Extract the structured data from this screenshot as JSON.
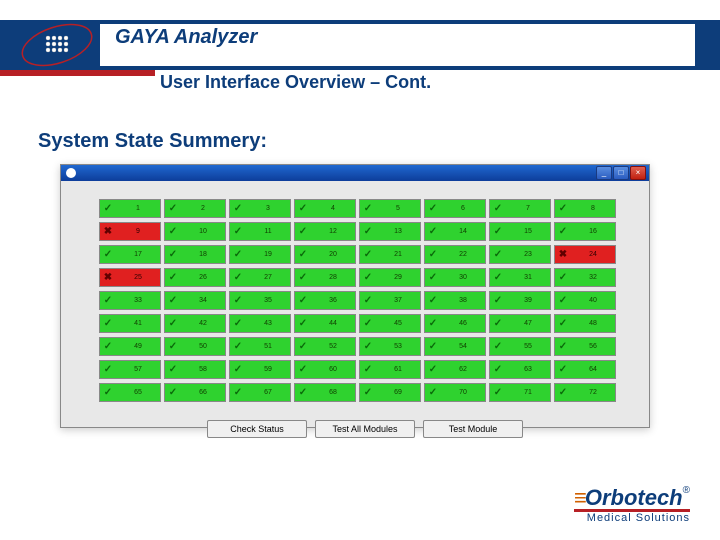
{
  "header": {
    "title": "GAYA Analyzer",
    "subtitle": "User Interface Overview – Cont.",
    "bar_color": "#0d3d7a",
    "underline_color": "#b72025"
  },
  "section_heading": "System State Summery:",
  "window": {
    "background": "#e8e8e8",
    "titlebar_gradient": [
      "#2068d0",
      "#0d3d9a"
    ],
    "controls": {
      "minimize": "_",
      "maximize": "□",
      "close": "×"
    }
  },
  "grid": {
    "columns": 8,
    "rows": 9,
    "cell_ok_color": "#2fd22f",
    "cell_fail_color": "#e02020",
    "ok_icon": "✓",
    "fail_icon": "✖",
    "cells": [
      {
        "n": 1,
        "s": "ok"
      },
      {
        "n": 2,
        "s": "ok"
      },
      {
        "n": 3,
        "s": "ok"
      },
      {
        "n": 4,
        "s": "ok"
      },
      {
        "n": 5,
        "s": "ok"
      },
      {
        "n": 6,
        "s": "ok"
      },
      {
        "n": 7,
        "s": "ok"
      },
      {
        "n": 8,
        "s": "ok"
      },
      {
        "n": 9,
        "s": "fail"
      },
      {
        "n": 10,
        "s": "ok"
      },
      {
        "n": 11,
        "s": "ok"
      },
      {
        "n": 12,
        "s": "ok"
      },
      {
        "n": 13,
        "s": "ok"
      },
      {
        "n": 14,
        "s": "ok"
      },
      {
        "n": 15,
        "s": "ok"
      },
      {
        "n": 16,
        "s": "ok"
      },
      {
        "n": 17,
        "s": "ok"
      },
      {
        "n": 18,
        "s": "ok"
      },
      {
        "n": 19,
        "s": "ok"
      },
      {
        "n": 20,
        "s": "ok"
      },
      {
        "n": 21,
        "s": "ok"
      },
      {
        "n": 22,
        "s": "ok"
      },
      {
        "n": 23,
        "s": "ok"
      },
      {
        "n": 24,
        "s": "fail"
      },
      {
        "n": 25,
        "s": "fail"
      },
      {
        "n": 26,
        "s": "ok"
      },
      {
        "n": 27,
        "s": "ok"
      },
      {
        "n": 28,
        "s": "ok"
      },
      {
        "n": 29,
        "s": "ok"
      },
      {
        "n": 30,
        "s": "ok"
      },
      {
        "n": 31,
        "s": "ok"
      },
      {
        "n": 32,
        "s": "ok"
      },
      {
        "n": 33,
        "s": "ok"
      },
      {
        "n": 34,
        "s": "ok"
      },
      {
        "n": 35,
        "s": "ok"
      },
      {
        "n": 36,
        "s": "ok"
      },
      {
        "n": 37,
        "s": "ok"
      },
      {
        "n": 38,
        "s": "ok"
      },
      {
        "n": 39,
        "s": "ok"
      },
      {
        "n": 40,
        "s": "ok"
      },
      {
        "n": 41,
        "s": "ok"
      },
      {
        "n": 42,
        "s": "ok"
      },
      {
        "n": 43,
        "s": "ok"
      },
      {
        "n": 44,
        "s": "ok"
      },
      {
        "n": 45,
        "s": "ok"
      },
      {
        "n": 46,
        "s": "ok"
      },
      {
        "n": 47,
        "s": "ok"
      },
      {
        "n": 48,
        "s": "ok"
      },
      {
        "n": 49,
        "s": "ok"
      },
      {
        "n": 50,
        "s": "ok"
      },
      {
        "n": 51,
        "s": "ok"
      },
      {
        "n": 52,
        "s": "ok"
      },
      {
        "n": 53,
        "s": "ok"
      },
      {
        "n": 54,
        "s": "ok"
      },
      {
        "n": 55,
        "s": "ok"
      },
      {
        "n": 56,
        "s": "ok"
      },
      {
        "n": 57,
        "s": "ok"
      },
      {
        "n": 58,
        "s": "ok"
      },
      {
        "n": 59,
        "s": "ok"
      },
      {
        "n": 60,
        "s": "ok"
      },
      {
        "n": 61,
        "s": "ok"
      },
      {
        "n": 62,
        "s": "ok"
      },
      {
        "n": 63,
        "s": "ok"
      },
      {
        "n": 64,
        "s": "ok"
      },
      {
        "n": 65,
        "s": "ok"
      },
      {
        "n": 66,
        "s": "ok"
      },
      {
        "n": 67,
        "s": "ok"
      },
      {
        "n": 68,
        "s": "ok"
      },
      {
        "n": 69,
        "s": "ok"
      },
      {
        "n": 70,
        "s": "ok"
      },
      {
        "n": 71,
        "s": "ok"
      },
      {
        "n": 72,
        "s": "ok"
      }
    ]
  },
  "buttons": {
    "check_status": "Check Status",
    "test_all": "Test All Modules",
    "test_module": "Test Module"
  },
  "footer": {
    "brand_stripes": "≡",
    "brand_name": "Orbotech",
    "brand_reg": "®",
    "brand_sub": "Medical Solutions",
    "brand_blue": "#0d3d7a",
    "brand_orange": "#d06000",
    "brand_red": "#b72025"
  }
}
